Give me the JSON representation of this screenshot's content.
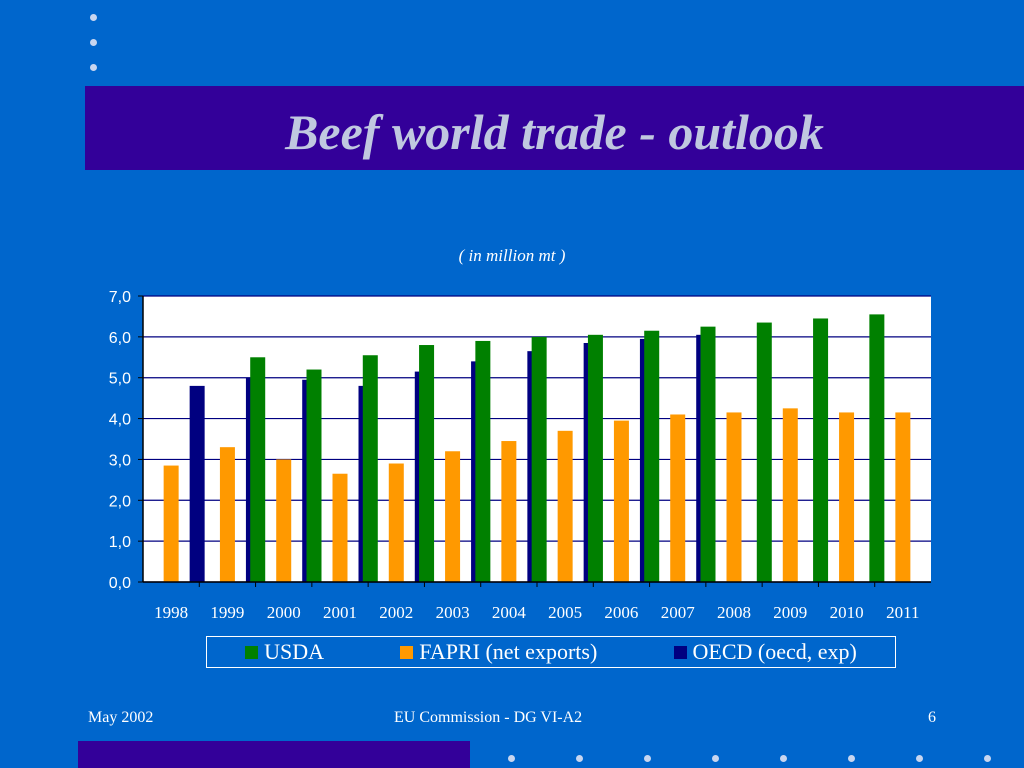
{
  "slide": {
    "title": "Beef world trade - outlook",
    "footer_left": "May 2002",
    "footer_center": "EU Commission - DG VI-A2",
    "footer_right": "6"
  },
  "colors": {
    "background": "#0066cc",
    "title_band": "#330099",
    "plot_background": "#ffffff",
    "usda": "#008000",
    "fapri": "#ff9900",
    "oecd": "#000080"
  },
  "chart_data": {
    "type": "bar",
    "title": "( in million mt )",
    "xlabel": "",
    "ylabel": "",
    "ylim": [
      0,
      7
    ],
    "y_ticks": [
      "0,0",
      "1,0",
      "2,0",
      "3,0",
      "4,0",
      "5,0",
      "6,0",
      "7,0"
    ],
    "grid": true,
    "legend_position": "bottom",
    "categories": [
      "1998",
      "1999",
      "2000",
      "2001",
      "2002",
      "2003",
      "2004",
      "2005",
      "2006",
      "2007",
      "2008",
      "2009",
      "2010",
      "2011"
    ],
    "series": [
      {
        "name": "USDA",
        "color": "#008000",
        "values": [
          null,
          null,
          5.5,
          5.2,
          5.55,
          5.8,
          5.9,
          6.0,
          6.05,
          6.15,
          6.25,
          6.35,
          6.45,
          6.55
        ]
      },
      {
        "name": "FAPRI (net exports)",
        "color": "#ff9900",
        "values": [
          2.85,
          3.3,
          3.0,
          2.65,
          2.9,
          3.2,
          3.45,
          3.7,
          3.95,
          4.1,
          4.15,
          4.25,
          4.15,
          4.15
        ]
      },
      {
        "name": "OECD (oecd, exp)",
        "color": "#000080",
        "values": [
          4.8,
          5.0,
          4.95,
          4.8,
          5.15,
          5.4,
          5.65,
          5.85,
          5.95,
          6.05,
          null,
          null,
          null,
          null
        ]
      }
    ]
  }
}
